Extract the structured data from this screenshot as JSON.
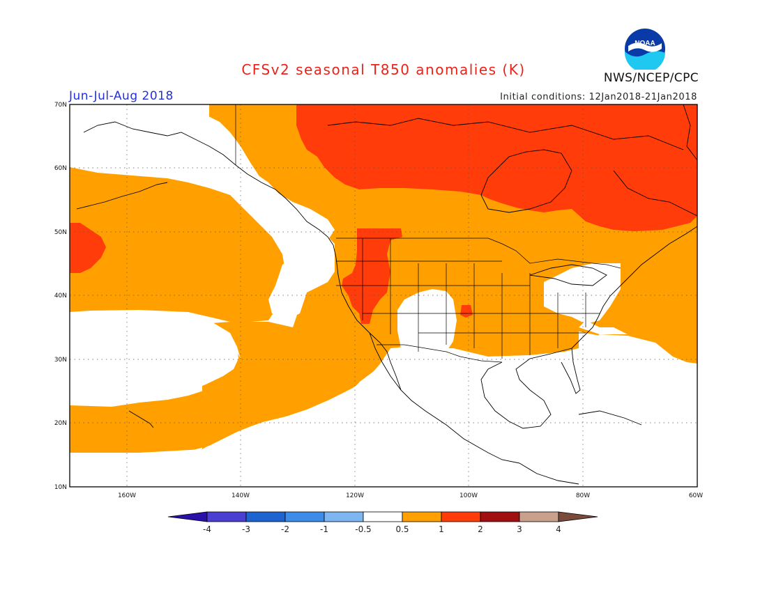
{
  "header": {
    "title": "CFSv2 seasonal T850 anomalies (K)",
    "season": "Jun-Jul-Aug 2018",
    "initial_conditions": "Initial conditions: 12Jan2018-21Jan2018",
    "agency": "NWS/NCEP/CPC",
    "logo_text": "NOAA"
  },
  "axes": {
    "lat_labels": [
      "70N",
      "60N",
      "50N",
      "40N",
      "30N",
      "20N",
      "10N"
    ],
    "lon_labels": [
      "160W",
      "140W",
      "120W",
      "100W",
      "80W",
      "60W"
    ]
  },
  "colorbar": {
    "labels": [
      "-4",
      "-3",
      "-2",
      "-1",
      "-0.5",
      "0.5",
      "1",
      "2",
      "3",
      "4"
    ],
    "colors": [
      "#2a0fa8",
      "#4a3fd0",
      "#1e64d0",
      "#3c8ce8",
      "#7eb6f2",
      "#ffffff",
      "#ffa000",
      "#ff3c0a",
      "#a01010",
      "#c8a08c",
      "#7a4a3a"
    ]
  },
  "shading_colors": {
    "anomaly_0p5_to_1": "#ffa000",
    "anomaly_1_to_2": "#ff3c0a"
  }
}
